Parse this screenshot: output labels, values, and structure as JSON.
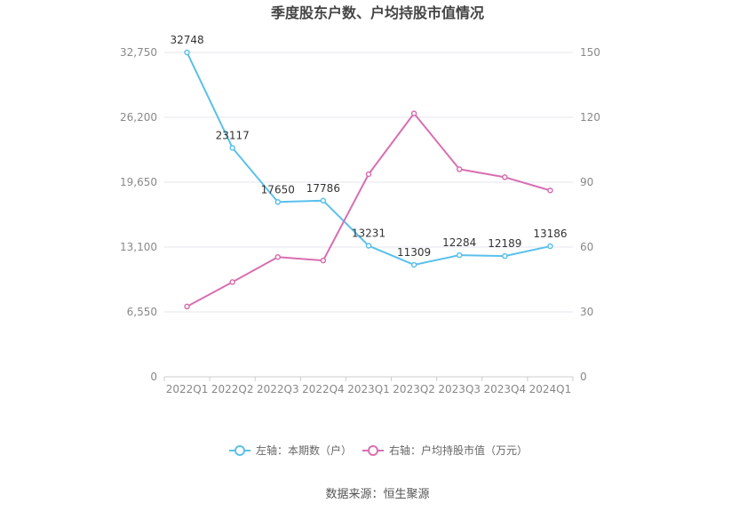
{
  "chart_data": {
    "type": "line",
    "title": "季度股东户数、户均持股市值情况",
    "categories": [
      "2022Q1",
      "2022Q2",
      "2022Q3",
      "2022Q4",
      "2023Q1",
      "2023Q2",
      "2023Q3",
      "2023Q4",
      "2024Q1"
    ],
    "series": [
      {
        "name": "左轴：本期数（户）",
        "axis": "left",
        "color": "#5bc0eb",
        "values": [
          32748,
          23117,
          17650,
          17786,
          13231,
          11309,
          12284,
          12189,
          13186
        ],
        "labels": [
          "32748",
          "23117",
          "17650",
          "17786",
          "13231",
          "11309",
          "12284",
          "12189",
          "13186"
        ]
      },
      {
        "name": "右轴：户均持股市值（万元）",
        "axis": "right",
        "color": "#d86fb0",
        "values": [
          32.5,
          43.8,
          55.4,
          53.8,
          93.7,
          121.8,
          96.0,
          92.3,
          86.2
        ]
      }
    ],
    "left_axis": {
      "ylim": [
        0,
        32750
      ],
      "ticks": [
        0,
        6550,
        13100,
        19650,
        26200,
        32750
      ],
      "tick_labels": [
        "0",
        "6,550",
        "13,100",
        "19,650",
        "26,200",
        "32,750"
      ]
    },
    "right_axis": {
      "ylim": [
        0,
        150
      ],
      "ticks": [
        0,
        30,
        60,
        90,
        120,
        150
      ],
      "tick_labels": [
        "0",
        "30",
        "60",
        "90",
        "120",
        "150"
      ]
    },
    "grid": true,
    "legend_position": "bottom",
    "source": "数据来源：恒生聚源"
  }
}
